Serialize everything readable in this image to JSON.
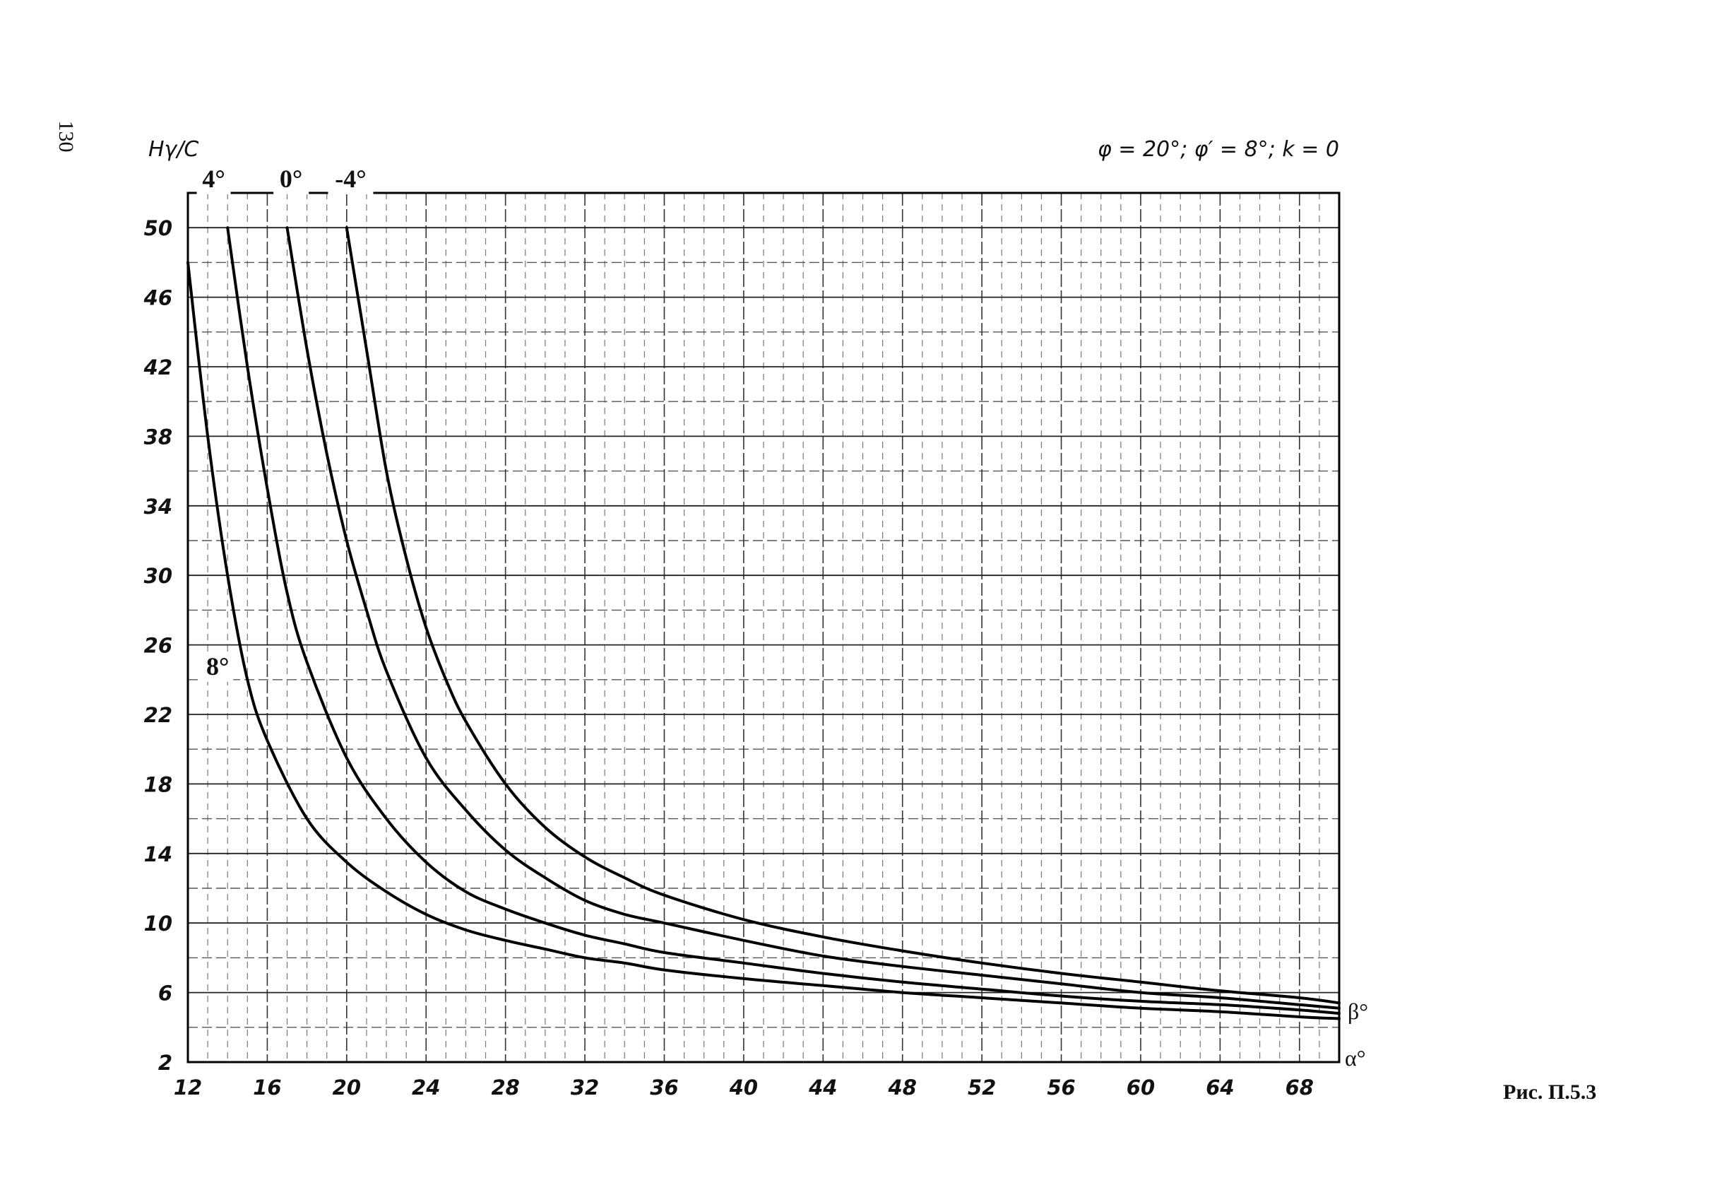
{
  "page_number": "130",
  "figure_caption": "Рис. П.5.3",
  "chart_data": {
    "type": "line",
    "title": "φ = 20°; φ′ = 8°; k = 0",
    "ylabel": "Hγ/C",
    "xlabel": "",
    "x_axis_symbol": "α°",
    "series_axis_symbol": "β°",
    "xlim": [
      12,
      70
    ],
    "ylim": [
      2,
      52
    ],
    "x_ticks": [
      12,
      16,
      20,
      24,
      28,
      32,
      36,
      40,
      44,
      48,
      52,
      56,
      60,
      64,
      68
    ],
    "y_ticks": [
      2,
      6,
      10,
      14,
      18,
      22,
      26,
      30,
      34,
      38,
      42,
      46,
      50
    ],
    "grid": true,
    "series": [
      {
        "name": "8°",
        "x": [
          12,
          13,
          14,
          15,
          16,
          18,
          20,
          22,
          24,
          26,
          28,
          30,
          32,
          34,
          36,
          40,
          44,
          48,
          52,
          56,
          60,
          64,
          68,
          70
        ],
        "y": [
          48,
          38,
          30,
          24,
          20.5,
          16,
          13.5,
          11.8,
          10.5,
          9.6,
          9.0,
          8.5,
          8.0,
          7.7,
          7.3,
          6.8,
          6.4,
          6.0,
          5.7,
          5.4,
          5.1,
          4.9,
          4.6,
          4.5
        ]
      },
      {
        "name": "4°",
        "x": [
          14,
          15,
          16,
          17,
          18,
          20,
          22,
          24,
          26,
          28,
          30,
          32,
          34,
          36,
          40,
          44,
          48,
          52,
          56,
          60,
          64,
          68,
          70
        ],
        "y": [
          50,
          42,
          35,
          29,
          25,
          19.5,
          16,
          13.5,
          11.8,
          10.8,
          10,
          9.3,
          8.8,
          8.3,
          7.7,
          7.1,
          6.6,
          6.2,
          5.8,
          5.5,
          5.3,
          5.0,
          4.8
        ]
      },
      {
        "name": "0°",
        "x": [
          17,
          18,
          19,
          20,
          21,
          22,
          24,
          26,
          28,
          30,
          32,
          34,
          36,
          40,
          44,
          48,
          52,
          56,
          60,
          64,
          68,
          70
        ],
        "y": [
          50,
          43,
          37,
          32,
          28,
          24.5,
          19.5,
          16.5,
          14.2,
          12.6,
          11.3,
          10.5,
          10.0,
          9.0,
          8.1,
          7.5,
          7.0,
          6.5,
          6.0,
          5.7,
          5.3,
          5.1
        ]
      },
      {
        "name": "-4°",
        "x": [
          20,
          21,
          22,
          23,
          24,
          25,
          26,
          28,
          30,
          32,
          34,
          36,
          40,
          44,
          48,
          52,
          56,
          60,
          64,
          68,
          70
        ],
        "y": [
          50,
          43,
          36,
          31,
          27,
          24,
          21.6,
          18.0,
          15.5,
          13.8,
          12.6,
          11.6,
          10.2,
          9.2,
          8.4,
          7.7,
          7.1,
          6.6,
          6.1,
          5.7,
          5.4
        ]
      }
    ]
  }
}
